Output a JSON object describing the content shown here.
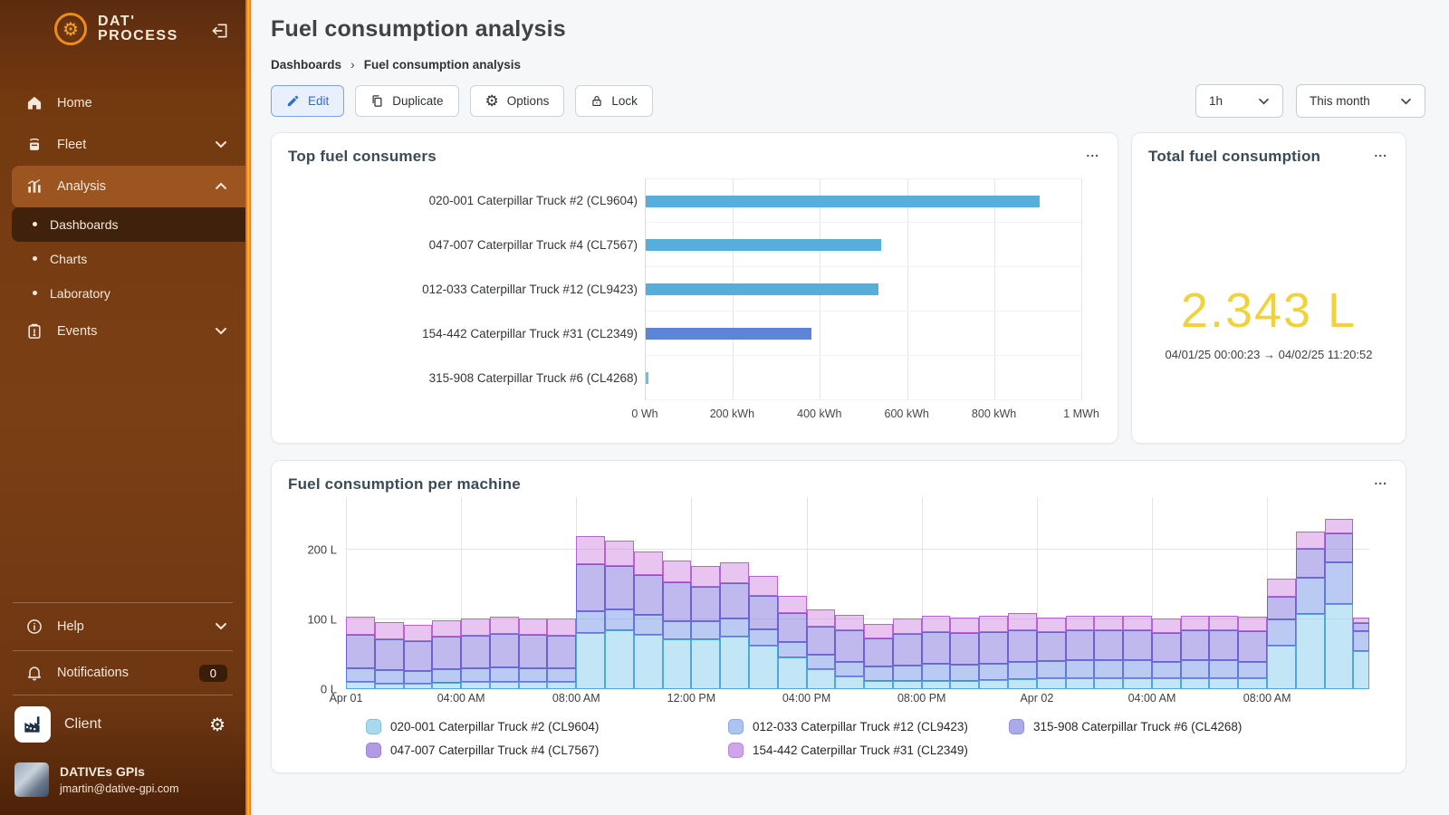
{
  "colors": {
    "accent_orange": "#ef8b1b",
    "sidebar_brown": "#73390f",
    "highlight_brown": "#9c5420",
    "selected_dark": "#40210c",
    "edit_blue": "#2e6bd3",
    "total_yellow": "#f0d33c"
  },
  "sidebar": {
    "logo_line1": "DAT'",
    "logo_line2": "PROCESS",
    "items": {
      "home": "Home",
      "fleet": "Fleet",
      "analysis": "Analysis",
      "events": "Events"
    },
    "analysis_children": [
      "Dashboards",
      "Charts",
      "Laboratory"
    ],
    "help": "Help",
    "notifications": {
      "label": "Notifications",
      "badge": "0"
    },
    "client": {
      "label": "Client"
    },
    "user": {
      "name": "DATIVEs GPIs",
      "email": "jmartin@dative-gpi.com"
    }
  },
  "header": {
    "title": "Fuel consumption analysis",
    "breadcrumb": {
      "home": "Dashboards",
      "separator": "›",
      "current": "Fuel consumption analysis"
    },
    "buttons": {
      "edit": "Edit",
      "duplicate": "Duplicate",
      "options": "Options",
      "lock": "Lock"
    },
    "filters": {
      "interval": "1h",
      "range": "This month"
    }
  },
  "cards": {
    "top_consumers": {
      "title": "Top fuel consumers",
      "more": "..."
    },
    "total": {
      "title": "Total fuel consumption",
      "more": "...",
      "value": "2.343 L",
      "period": "04/01/25 00:00:23 → 04/02/25 11:20:52"
    },
    "per_machine": {
      "title": "Fuel consumption per machine",
      "more": "..."
    }
  },
  "chart_data": [
    {
      "type": "bar",
      "orientation": "horizontal",
      "title": "Top fuel consumers",
      "categories": [
        "020-001 Caterpillar Truck #2 (CL9604)",
        "047-007 Caterpillar Truck #4 (CL7567)",
        "012-033 Caterpillar Truck #12 (CL9423)",
        "154-442 Caterpillar Truck #31 (CL2349)",
        "315-908 Caterpillar Truck #6 (CL4268)"
      ],
      "values_kwh": [
        905,
        540,
        535,
        380,
        6
      ],
      "bar_colors": [
        "#57aed9",
        "#57aed9",
        "#57aed9",
        "#5b86d7",
        "#67c3e6"
      ],
      "xlim": [
        0,
        1000
      ],
      "x_tick_labels": [
        "0 Wh",
        "200 kWh",
        "400 kWh",
        "600 kWh",
        "800 kWh",
        "1 MWh"
      ],
      "grid": "vertical"
    },
    {
      "type": "number",
      "title": "Total fuel consumption",
      "value": "2.343 L",
      "period_start": "04/01/25 00:00:23",
      "period_end": "04/02/25 11:20:52"
    },
    {
      "type": "bar",
      "stacked": true,
      "title": "Fuel consumption per machine",
      "x_start": "Apr 01 12:00 AM",
      "x_step_hours": 1,
      "n_bars": 36,
      "last_bar_partial": true,
      "x_tick_labels": [
        "Apr 01",
        "04:00 AM",
        "08:00 AM",
        "12:00 PM",
        "04:00 PM",
        "08:00 PM",
        "Apr 02",
        "04:00 AM",
        "08:00 AM"
      ],
      "x_tick_every": 4,
      "ylabel_unit": "L",
      "y_tick_labels": [
        "0 L",
        "100 L",
        "200 L"
      ],
      "ylim": [
        0,
        260
      ],
      "series": [
        {
          "name": "020-001 Caterpillar Truck #2 (CL9604)",
          "fill": "rgba(120,200,232,0.45)",
          "border": "#4fa8d8",
          "legend_fill": "#a9d9ec",
          "legend_border": "#7fc2e0",
          "values": [
            10,
            8,
            8,
            9,
            10,
            10,
            10,
            10,
            80,
            85,
            78,
            72,
            72,
            76,
            62,
            45,
            28,
            18,
            12,
            12,
            12,
            12,
            13,
            14,
            15,
            16,
            16,
            16,
            15,
            16,
            16,
            15,
            62,
            108,
            122,
            55
          ]
        },
        {
          "name": "012-033 Caterpillar Truck #12 (CL9423)",
          "fill": "rgba(120,150,230,0.50)",
          "border": "#6277d8",
          "legend_fill": "#aec4f0",
          "legend_border": "#8aa8e4",
          "values": [
            20,
            19,
            18,
            20,
            20,
            21,
            20,
            20,
            32,
            30,
            28,
            26,
            25,
            26,
            24,
            22,
            22,
            21,
            20,
            22,
            24,
            23,
            24,
            25,
            25,
            25,
            25,
            25,
            24,
            25,
            25,
            24,
            38,
            52,
            60,
            28
          ]
        },
        {
          "name": "047-007 Caterpillar Truck #4 (CL7567)",
          "fill": "rgba(130,115,220,0.50)",
          "border": "#6f5fd0",
          "legend_fill": "#b49ae2",
          "legend_border": "#9d7fd6",
          "values": [
            48,
            45,
            43,
            46,
            47,
            48,
            48,
            47,
            68,
            62,
            58,
            55,
            50,
            50,
            48,
            42,
            40,
            45,
            41,
            45,
            46,
            45,
            45,
            46,
            42,
            43,
            43,
            43,
            42,
            43,
            44,
            44,
            32,
            42,
            42,
            12
          ]
        },
        {
          "name": "154-442 Caterpillar Truck #31 (CL2349)",
          "fill": "rgba(205,125,225,0.45)",
          "border": "#b863d4",
          "legend_fill": "#d0a4e8",
          "legend_border": "#bc85dc",
          "values": [
            26,
            24,
            23,
            24,
            24,
            25,
            24,
            24,
            40,
            36,
            34,
            32,
            30,
            30,
            28,
            25,
            24,
            23,
            21,
            23,
            24,
            23,
            23,
            24,
            21,
            21,
            21,
            21,
            21,
            21,
            21,
            21,
            26,
            24,
            20,
            8
          ]
        },
        {
          "name": "315-908 Caterpillar Truck #6 (CL4268)",
          "fill": "rgba(150,148,230,0.50)",
          "border": "#7f7dd8",
          "legend_fill": "#abaae8",
          "legend_border": "#8f8ede",
          "values": [
            0,
            0,
            0,
            0,
            0,
            0,
            0,
            0,
            0,
            0,
            0,
            0,
            0,
            0,
            0,
            0,
            0,
            0,
            0,
            0,
            0,
            0,
            0,
            0,
            0,
            0,
            0,
            0,
            0,
            0,
            0,
            0,
            0,
            0,
            0,
            0
          ]
        }
      ],
      "legend_order": [
        0,
        1,
        4,
        2,
        3
      ],
      "legend_position": "bottom"
    }
  ]
}
